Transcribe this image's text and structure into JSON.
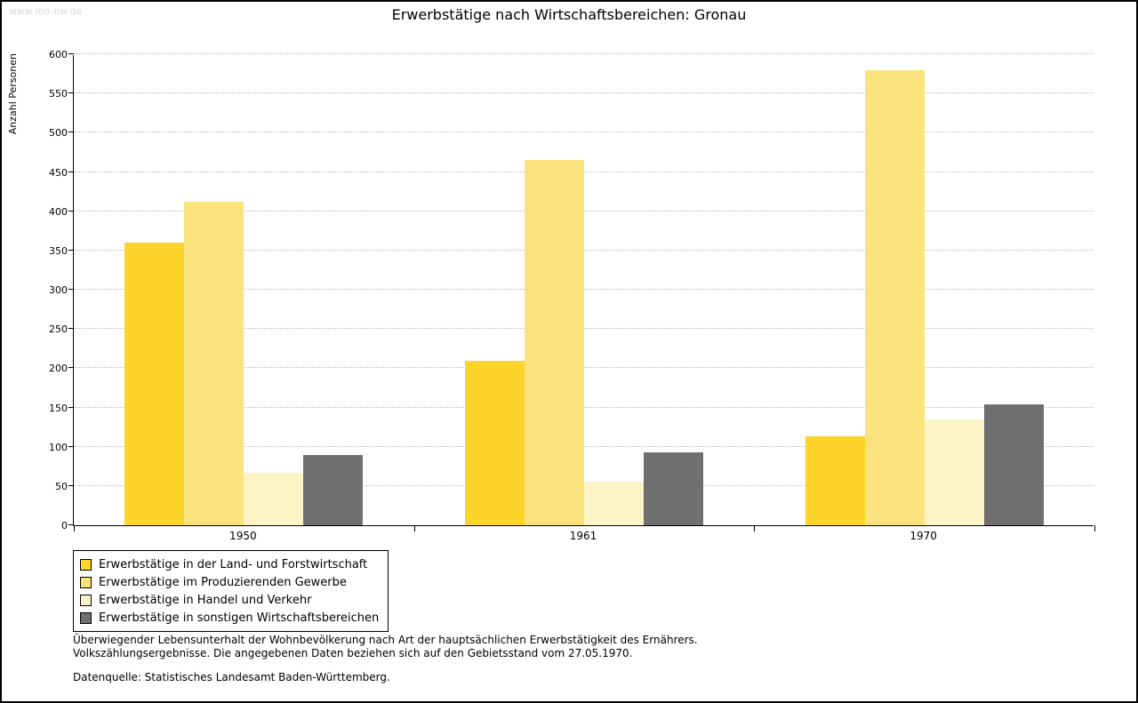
{
  "watermark": "www.leo-bw.de",
  "chart_data": {
    "type": "bar",
    "title": "Erwerbstätige nach Wirtschaftsbereichen: Gronau",
    "ylabel": "Anzahl Personen",
    "xlabel": "",
    "categories": [
      "1950",
      "1961",
      "1970"
    ],
    "series": [
      {
        "name": "Erwerbstätige in der Land- und Forstwirtschaft",
        "color": "#FCD42A",
        "values": [
          360,
          210,
          113
        ]
      },
      {
        "name": "Erwerbstätige im Produzierenden Gewerbe",
        "color": "#FAE37D",
        "values": [
          412,
          465,
          580
        ]
      },
      {
        "name": "Erwerbstätige in Handel und Verkehr",
        "color": "#FCF4C7",
        "values": [
          67,
          56,
          135
        ]
      },
      {
        "name": "Erwerbstätige in sonstigen Wirtschaftsbereichen",
        "color": "#6F6F6F",
        "values": [
          89,
          93,
          154
        ]
      }
    ],
    "ylim": [
      0,
      600
    ],
    "ytick_step": 50,
    "grid": "horizontal-dotted",
    "legend_position": "bottom-left"
  },
  "notes": {
    "line1": "Überwiegender Lebensunterhalt der Wohnbevölkerung nach Art der hauptsächlichen Erwerbstätigkeit des Ernährers.",
    "line2": "Volkszählungsergebnisse. Die angegebenen Daten beziehen sich auf den Gebietsstand vom 27.05.1970.",
    "source": "Datenquelle: Statistisches Landesamt Baden-Württemberg."
  }
}
